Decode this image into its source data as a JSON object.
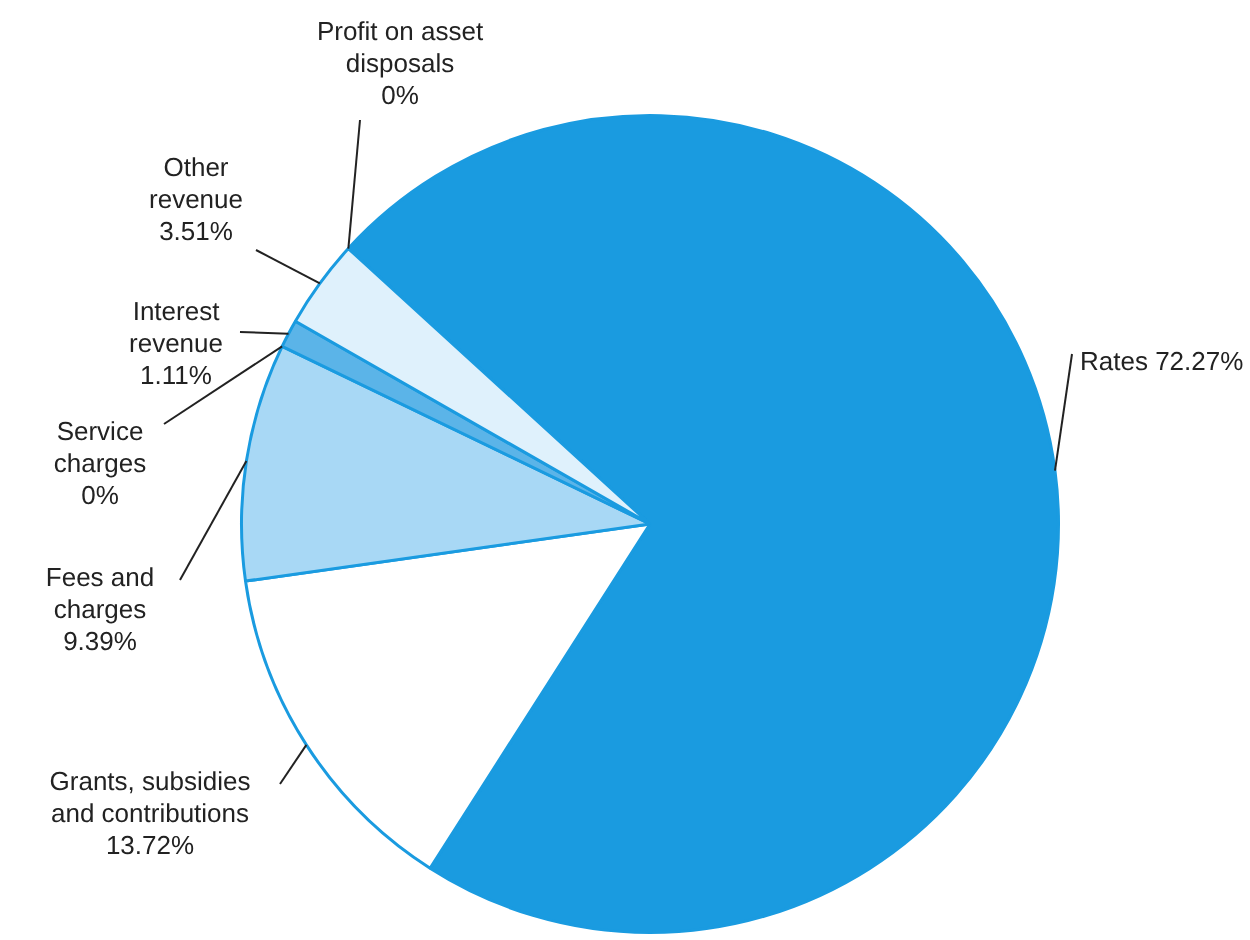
{
  "chart_data": {
    "type": "pie",
    "categories": [
      "Rates",
      "Grants, subsidies and contributions",
      "Fees and charges",
      "Service charges",
      "Interest revenue",
      "Other revenue",
      "Profit on asset disposals"
    ],
    "values": [
      72.27,
      13.72,
      9.39,
      0,
      1.11,
      3.51,
      0
    ],
    "value_labels": [
      "72.27%",
      "13.72%",
      "9.39%",
      "0%",
      "1.11%",
      "3.51%",
      "0%"
    ],
    "colors": [
      "#1a9be0",
      "#ffffff",
      "#a8d8f5",
      "#ffffff",
      "#5bb4e8",
      "#dff1fc",
      "#ffffff"
    ],
    "legend": false
  }
}
